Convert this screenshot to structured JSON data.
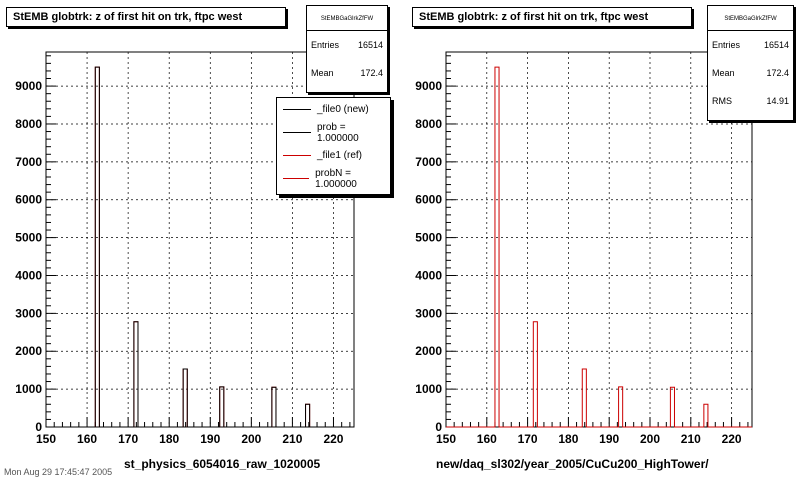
{
  "panels": [
    {
      "title": "StEMB globtrk: z of first hit on trk, ftpc west",
      "stats": {
        "name": "StEMBGaGlrkZfFW",
        "entries_label": "Entries",
        "entries": "16514",
        "mean_label": "Mean",
        "mean": "172.4"
      },
      "legend": [
        {
          "label": "_file0 (new)",
          "color": "#000000"
        },
        {
          "label": "prob = 1.000000",
          "color": "#000000"
        },
        {
          "label": "_file1 (ref)",
          "color": "#cc0000"
        },
        {
          "label": "probN = 1.000000",
          "color": "#cc0000"
        }
      ],
      "xlabel": "st_physics_6054016_raw_1020005"
    },
    {
      "title": "StEMB globtrk: z of first hit on trk, ftpc west",
      "stats": {
        "name": "StEMBGaGlrkZfFW",
        "entries_label": "Entries",
        "entries": "16514",
        "mean_label": "Mean",
        "mean": "172.4",
        "rms_label": "RMS",
        "rms": "14.91"
      },
      "xlabel": "new/daq_sl302/year_2005/CuCu200_HighTower/"
    }
  ],
  "chart_data": [
    {
      "type": "bar",
      "title": "StEMB globtrk: z of first hit on trk, ftpc west",
      "xlabel": "st_physics_6054016_raw_1020005",
      "ylabel": "",
      "xlim": [
        150,
        225
      ],
      "ylim": [
        0,
        9900
      ],
      "xticks": [
        150,
        160,
        170,
        180,
        190,
        200,
        210,
        220
      ],
      "yticks": [
        0,
        1000,
        2000,
        3000,
        4000,
        5000,
        6000,
        7000,
        8000,
        9000
      ],
      "grid": true,
      "bin_width": 1.0,
      "series": [
        {
          "name": "_file0 (new)",
          "color": "#000000",
          "x": [
            162.5,
            171.9,
            183.9,
            192.8,
            205.5,
            213.7
          ],
          "values": [
            9500,
            2780,
            1530,
            1060,
            1050,
            600
          ]
        },
        {
          "name": "_file1 (ref)",
          "color": "#cc0000",
          "x": [
            162.5,
            171.9,
            183.9,
            192.8,
            205.5,
            213.7
          ],
          "values": [
            9500,
            2780,
            1530,
            1060,
            1050,
            600
          ]
        }
      ]
    },
    {
      "type": "bar",
      "title": "StEMB globtrk: z of first hit on trk, ftpc west",
      "xlabel": "new/daq_sl302/year_2005/CuCu200_HighTower/",
      "ylabel": "",
      "xlim": [
        150,
        225
      ],
      "ylim": [
        0,
        9900
      ],
      "xticks": [
        150,
        160,
        170,
        180,
        190,
        200,
        210,
        220
      ],
      "yticks": [
        0,
        1000,
        2000,
        3000,
        4000,
        5000,
        6000,
        7000,
        8000,
        9000
      ],
      "grid": true,
      "bin_width": 1.0,
      "series": [
        {
          "color": "#cc0000",
          "x": [
            162.5,
            171.9,
            183.9,
            192.8,
            205.5,
            213.7
          ],
          "values": [
            9500,
            2780,
            1530,
            1060,
            1050,
            600
          ]
        }
      ]
    }
  ],
  "footer": "Mon Aug 29 17:45:47 2005"
}
